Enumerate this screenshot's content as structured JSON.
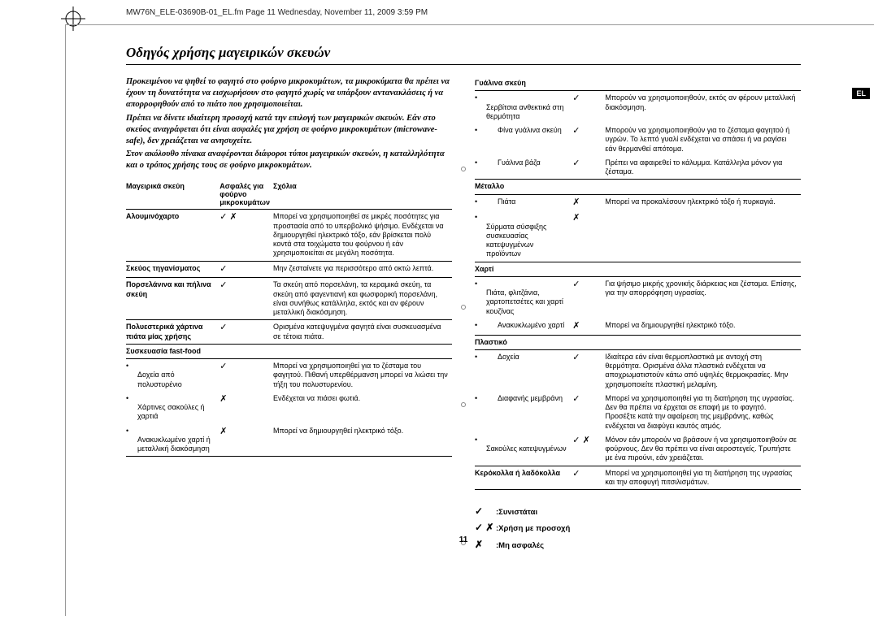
{
  "header_path": "MW76N_ELE-03690B-01_EL.fm  Page 11  Wednesday, November 11, 2009  3:59 PM",
  "sidebar_lang": "EL",
  "page_number": "11",
  "title": "Οδηγός χρήσης μαγειρικών σκευών",
  "intro": {
    "p1": "Προκειμένου να ψηθεί το φαγητό στο φούρνο μικροκυμάτων, τα μικροκύματα θα πρέπει να έχουν τη δυνατότητα να εισχωρήσουν στο φαγητό χωρίς να υπάρξουν αντανακλάσεις ή να απορροφηθούν από το πιάτο που χρησιμοποιείται.",
    "p2": "Πρέπει να δίνετε ιδιαίτερη προσοχή κατά την επιλογή των μαγειρικών σκευών. Εάν στο σκεύος αναγράφεται ότι είναι ασφαλές για χρήση σε φούρνο μικροκυμάτων (microwave-safe), δεν χρειάζεται να ανησυχείτε.",
    "p3": "Στον ακόλουθο πίνακα αναφέρονται διάφοροι τύποι μαγειρικών σκευών, η καταλληλότητα και ο τρόπος χρήσης τους σε φούρνο μικροκυμάτων."
  },
  "table_headers": {
    "c1": "Μαγειρικά σκεύη",
    "c2": "Ασφαλές για φούρνο μικροκυμάτων",
    "c3": "Σχόλια"
  },
  "marks": {
    "yes": "✓",
    "no": "✗",
    "caution": "✓ ✗"
  },
  "left_rows": [
    {
      "type": "row",
      "c1": "Αλουμινόχαρτο",
      "mark": "caution",
      "c3": "Μπορεί να χρησιμοποιηθεί σε μικρές ποσότητες για προστασία από το υπερβολικό ψήσιμο. Ενδέχεται να δημιουργηθεί ηλεκτρικό τόξο, εάν βρίσκεται πολύ κοντά στα τοιχώματα του φούρνου ή εάν χρησιμοποιείται σε μεγάλη ποσότητα."
    },
    {
      "type": "row",
      "c1": "Σκεύος τηγανίσματος",
      "mark": "yes",
      "c3": "Μην ζεσταίνετε για περισσότερο από οκτώ λεπτά."
    },
    {
      "type": "row",
      "c1": "Πορσελάνινα και πήλινα σκεύη",
      "mark": "yes",
      "c3": "Τα σκεύη από πορσελάνη, τα κεραμικά σκεύη, τα σκεύη από φαγεντιανή και φωσφορική πορσελάνη, είναι συνήθως κατάλληλα, εκτός και αν φέρουν μεταλλική διακόσμηση."
    },
    {
      "type": "row",
      "c1": "Πολυεστερικά χάρτινα πιάτα μίας χρήσης",
      "mark": "yes",
      "c3": "Ορισμένα κατεψυγμένα φαγητά είναι συσκευασμένα σε τέτοια πιάτα."
    },
    {
      "type": "section",
      "c1": "Συσκευασία fast-food"
    },
    {
      "type": "sub",
      "c1": "Δοχεία από πολυστυρένιο",
      "mark": "yes",
      "c3": "Μπορεί να χρησιμοποιηθεί για το ζέσταμα του φαγητού. Πιθανή υπερθέρμανση μπορεί να λιώσει την τήξη του πολυστυρενίου."
    },
    {
      "type": "sub",
      "c1": "Χάρτινες σακούλες ή χαρτιά",
      "mark": "no",
      "c3": "Ενδέχεται να πιάσει φωτιά."
    },
    {
      "type": "sublast",
      "c1": "Ανακυκλωμένο χαρτί ή μεταλλική διακόσμηση",
      "mark": "no",
      "c3": "Μπορεί να δημιουργηθεί ηλεκτρικό τόξο."
    }
  ],
  "right_sections": [
    {
      "heading": "Γυάλινα σκεύη",
      "rows": [
        {
          "c1": "Σερβίτσια ανθεκτικά στη θερμότητα",
          "mark": "yes",
          "c3": "Μπορούν να χρησιμοποιηθούν, εκτός αν φέρουν μεταλλική διακόσμηση."
        },
        {
          "c1": "Φίνα γυάλινα σκεύη",
          "mark": "yes",
          "c3": "Μπορούν να χρησιμοποιηθούν για το ζέσταμα φαγητού ή υγρών. Το λεπτό γυαλί ενδέχεται να σπάσει ή να ραγίσει εάν θερμανθεί απότομα."
        },
        {
          "c1": "Γυάλινα βάζα",
          "mark": "yes",
          "c3": "Πρέπει να αφαιρεθεί το κάλυμμα. Κατάλληλα μόνον για ζέσταμα.",
          "last": true
        }
      ]
    },
    {
      "heading": "Μέταλλο",
      "rows": [
        {
          "c1": "Πιάτα",
          "mark": "no",
          "c3": "Μπορεί να προκαλέσουν ηλεκτρικό τόξο ή πυρκαγιά."
        },
        {
          "c1": "Σύρματα σύσφιξης συσκευασίας κατεψυγμένων προϊόντων",
          "mark": "no",
          "c3": "",
          "last": true
        }
      ]
    },
    {
      "heading": "Χαρτί",
      "rows": [
        {
          "c1": "Πιάτα, φλιτζάνια, χαρτοπετσέτες και χαρτί κουζίνας",
          "mark": "yes",
          "c3": "Για ψήσιμο μικρής χρονικής διάρκειας και ζέσταμα. Επίσης, για την απορρόφηση υγρασίας."
        },
        {
          "c1": "Ανακυκλωμένο χαρτί",
          "mark": "no",
          "c3": "Μπορεί να δημιουργηθεί ηλεκτρικό τόξο.",
          "last": true
        }
      ]
    },
    {
      "heading": "Πλαστικό",
      "rows": [
        {
          "c1": "Δοχεία",
          "mark": "yes",
          "c3": "Ιδιαίτερα εάν είναι θερμοπλαστικά με αντοχή στη θερμότητα. Ορισμένα άλλα πλαστικά ενδέχεται να αποχρωματιστούν κάτω από υψηλές θερμοκρασίες. Μην χρησιμοποιείτε πλαστική μελαμίνη."
        },
        {
          "c1": "Διαφανής μεμβράνη",
          "mark": "yes",
          "c3": "Μπορεί να χρησιμοποιηθεί για τη διατήρηση της υγρασίας. Δεν θα πρέπει να έρχεται σε επαφή με το φαγητό. Προσέξτε κατά την αφαίρεση της μεμβράνης, καθώς ενδέχεται να διαφύγει καυτός ατμός."
        },
        {
          "c1": "Σακούλες κατεψυγμένων",
          "mark": "caution",
          "c3": "Μόνον εάν μπορούν να βράσουν ή να χρησιμοποιηθούν σε φούρνους. Δεν θα πρέπει να είναι αεροστεγείς. Τρυπήστε με ένα πιρούνι, εάν χρειάζεται.",
          "last": true
        }
      ]
    }
  ],
  "wax_row": {
    "c1": "Κερόκολλα ή λαδόκολλα",
    "mark": "yes",
    "c3": "Μπορεί να χρησιμοποιηθεί για τη διατήρηση της υγρασίας και την αποφυγή πιτσιλισμάτων."
  },
  "legend": {
    "l1": ":Συνιστάται",
    "l2": ":Χρήση με προσοχή",
    "l3": ":Μη ασφαλές"
  }
}
